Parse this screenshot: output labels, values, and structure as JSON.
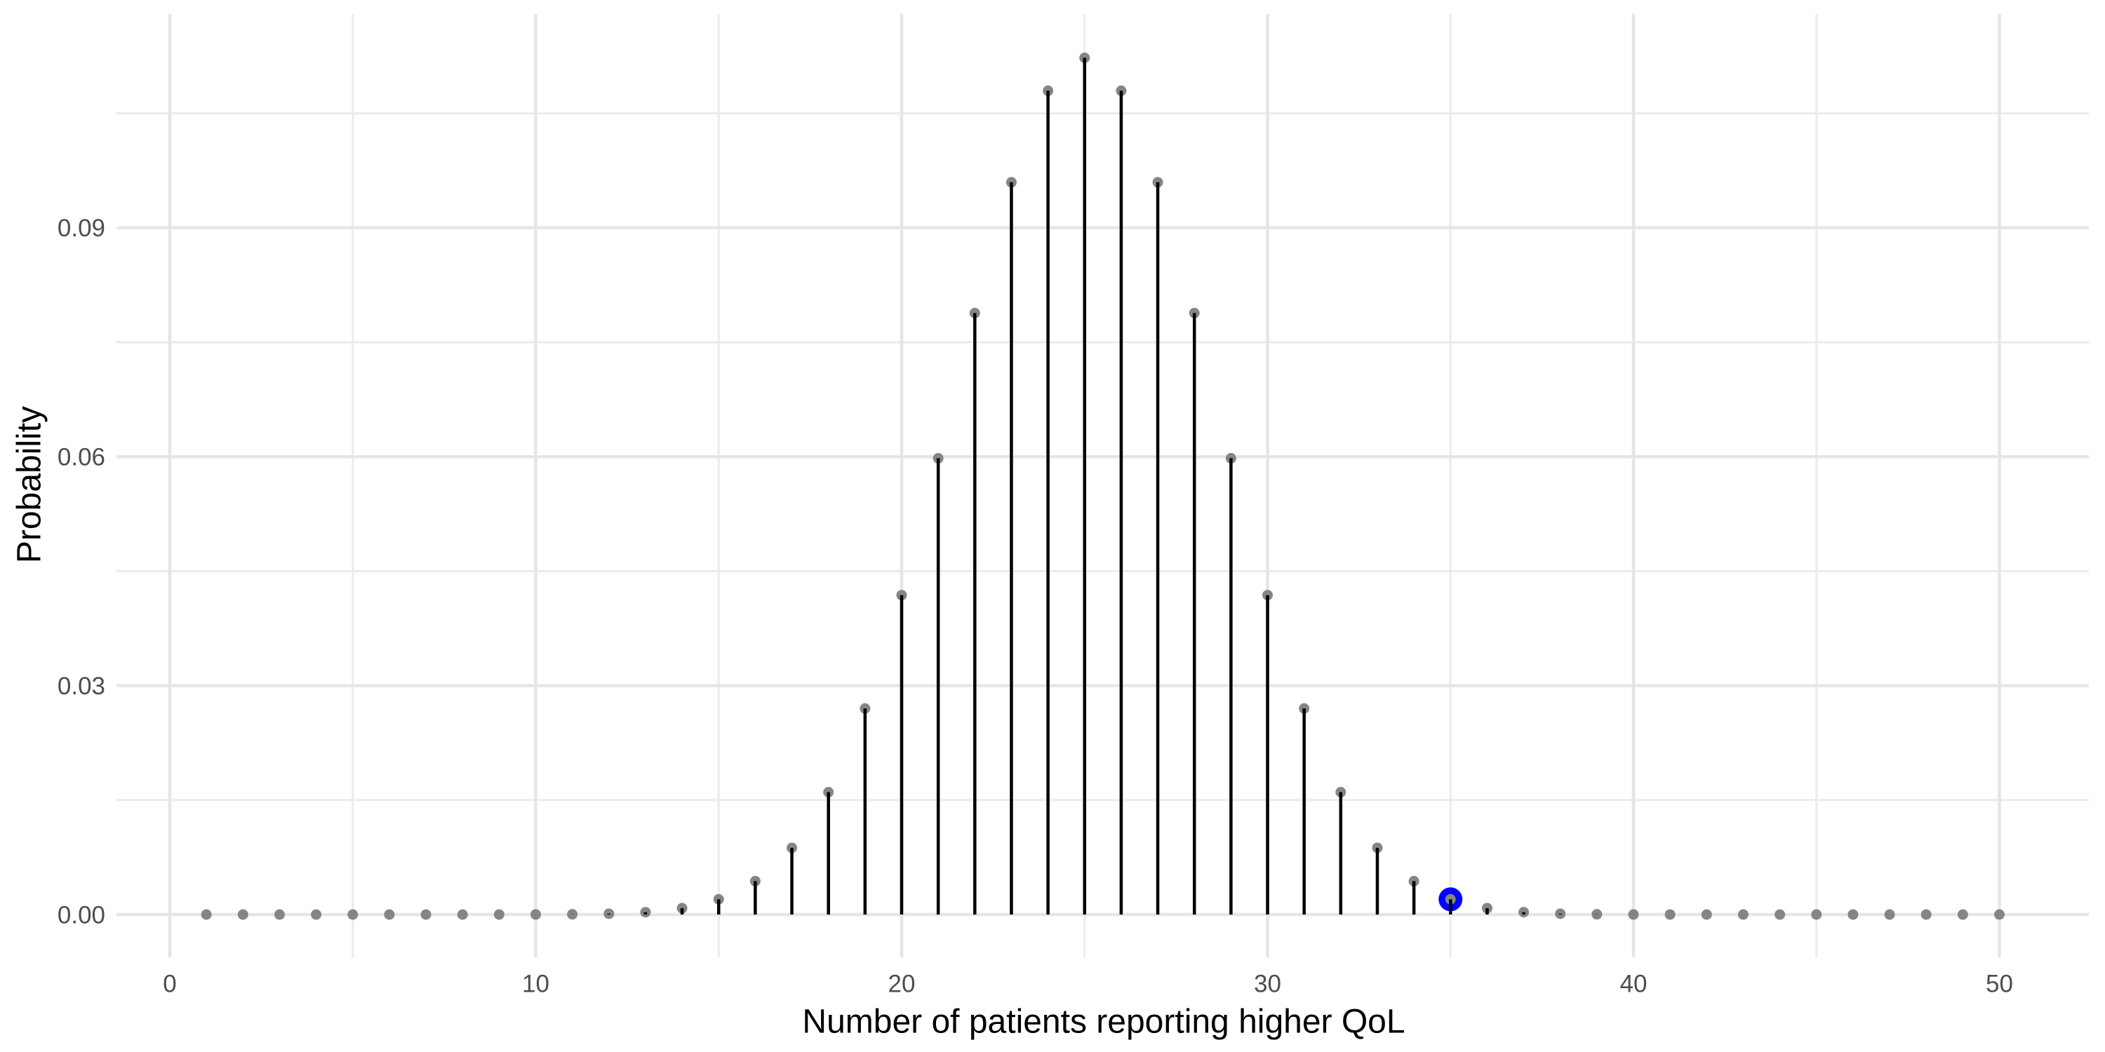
{
  "chart_data": {
    "type": "scatter",
    "style": "lollipop-stem-plot",
    "title": "",
    "xlabel": "Number of patients reporting higher QoL",
    "ylabel": "Probability",
    "x": [
      1,
      2,
      3,
      4,
      5,
      6,
      7,
      8,
      9,
      10,
      11,
      12,
      13,
      14,
      15,
      16,
      17,
      18,
      19,
      20,
      21,
      22,
      23,
      24,
      25,
      26,
      27,
      28,
      29,
      30,
      31,
      32,
      33,
      34,
      35,
      36,
      37,
      38,
      39,
      40,
      41,
      42,
      43,
      44,
      45,
      46,
      47,
      48,
      49,
      50
    ],
    "y": [
      0,
      0,
      0,
      0,
      0,
      0,
      1e-07,
      5e-07,
      2.2e-06,
      9.1e-06,
      3.32e-05,
      0.0001078,
      0.0003152,
      0.000833,
      0.001999,
      0.004373,
      0.008746,
      0.016035,
      0.027007,
      0.041859,
      0.059799,
      0.078826,
      0.095962,
      0.107957,
      0.112275,
      0.107957,
      0.095962,
      0.078826,
      0.059799,
      0.041859,
      0.027007,
      0.016035,
      0.008746,
      0.004373,
      0.001999,
      0.000833,
      0.0003152,
      0.0001078,
      3.32e-05,
      9.1e-06,
      2.2e-06,
      5e-07,
      1e-07,
      0,
      0,
      0,
      0,
      0,
      0,
      0
    ],
    "highlight_point": {
      "x": 35,
      "y": 0.001999,
      "color": "#0000ff"
    },
    "x_ticks": {
      "values": [
        0,
        10,
        20,
        30,
        40,
        50
      ],
      "labels": [
        "0",
        "10",
        "20",
        "30",
        "40",
        "50"
      ]
    },
    "y_ticks": {
      "values": [
        0,
        0.03,
        0.06,
        0.09
      ],
      "labels": [
        "0.00",
        "0.03",
        "0.06",
        "0.09"
      ]
    },
    "x_minor": [
      5,
      15,
      25,
      35,
      45
    ],
    "y_minor": [
      0.015,
      0.045,
      0.075,
      0.105
    ],
    "xlim": [
      -1.45,
      52.45
    ],
    "ylim": [
      -0.0056,
      0.1179
    ],
    "grid": true,
    "legend": "none",
    "colors": {
      "background": "#ffffff",
      "grid_major": "#e6e6e6",
      "grid_minor": "#ebebeb",
      "stem": "#000000",
      "point": "#858585",
      "highlight": "#0000ff",
      "tick_label": "#4d4d4d",
      "axis_title": "#000000"
    }
  }
}
